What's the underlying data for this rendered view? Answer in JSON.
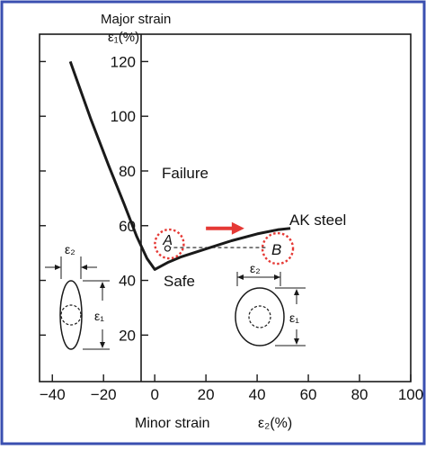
{
  "colors": {
    "frame": "#3a4fb0",
    "background": "#ffffff",
    "ink": "#1a1a1a",
    "accent": "#e53935"
  },
  "chart_data": {
    "type": "line",
    "ylabel_line1": "Major strain",
    "ylabel_line2": "ε₁(%)",
    "xlabel_prefix": "Minor strain",
    "xlabel_symbol": "ε₂(%)",
    "xlim": [
      -45,
      100
    ],
    "ylim": [
      3,
      130
    ],
    "xticks": [
      -40,
      -20,
      0,
      20,
      40,
      60,
      80,
      100
    ],
    "yticks": [
      20,
      40,
      60,
      80,
      100,
      120
    ],
    "xtick_labels": [
      "−40",
      "−20",
      "0",
      "20",
      "40",
      "60",
      "80",
      "100"
    ],
    "ytick_labels": [
      "20",
      "40",
      "60",
      "80",
      "100",
      "120"
    ],
    "series": [
      {
        "name": "AK steel",
        "x": [
          -33,
          -25,
          -18,
          -12,
          -7,
          -3,
          0,
          5,
          10,
          20,
          30,
          40,
          48,
          53
        ],
        "y": [
          120,
          99,
          82,
          68,
          56,
          48,
          44,
          46.5,
          48.5,
          51.5,
          54.5,
          57,
          58.5,
          59
        ]
      }
    ],
    "regions": {
      "upper": "Failure",
      "lower": "Safe"
    },
    "points": [
      {
        "label": "A",
        "x": 5,
        "y": 52
      },
      {
        "label": "B",
        "x": 47,
        "y": 52
      }
    ],
    "arrow": {
      "from": [
        20,
        59
      ],
      "to": [
        35,
        59
      ]
    },
    "inset_left": {
      "e2": "ε₂",
      "e1": "ε₁"
    },
    "inset_right": {
      "e2": "ε₂",
      "e1": "ε₁"
    }
  }
}
